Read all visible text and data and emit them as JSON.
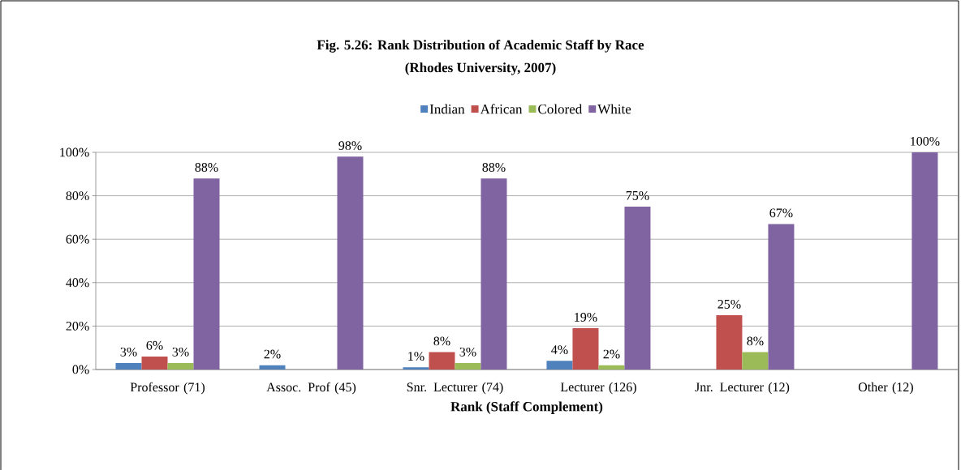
{
  "chart_data": {
    "type": "bar",
    "title": "Fig. 5.26: Rank Distribution of Academic Staff by Race",
    "subtitle": "(Rhodes University, 2007)",
    "xlabel": "Rank (Staff Complement)",
    "categories": [
      "Professor (71)",
      "Assoc. Prof (45)",
      "Snr. Lecturer (74)",
      "Lecturer (126)",
      "Jnr. Lecturer (12)",
      "Other (12)"
    ],
    "series": [
      {
        "name": "Indian",
        "color": "#4f81bd",
        "values": [
          3,
          2,
          1,
          4,
          null,
          null
        ],
        "value_labels": [
          "3%",
          "2%",
          "1%",
          "4%",
          null,
          null
        ]
      },
      {
        "name": "African",
        "color": "#c0504d",
        "values": [
          6,
          null,
          8,
          19,
          25,
          null
        ],
        "value_labels": [
          "6%",
          null,
          "8%",
          "19%",
          "25%",
          null
        ]
      },
      {
        "name": "Colored",
        "color": "#9bbb59",
        "values": [
          3,
          null,
          3,
          2,
          8,
          null
        ],
        "value_labels": [
          "3%",
          null,
          "3%",
          "2%",
          "8%",
          null
        ]
      },
      {
        "name": "White",
        "color": "#8064a2",
        "values": [
          88,
          98,
          88,
          75,
          67,
          100
        ],
        "value_labels": [
          "88%",
          "98%",
          "88%",
          "75%",
          "67%",
          "100%"
        ]
      }
    ],
    "ylim": [
      0,
      100
    ],
    "yticks": [
      {
        "value": 0,
        "label": "0%"
      },
      {
        "value": 20,
        "label": "20%"
      },
      {
        "value": 40,
        "label": "40%"
      },
      {
        "value": 60,
        "label": "60%"
      },
      {
        "value": 80,
        "label": "80%"
      },
      {
        "value": 100,
        "label": "100%"
      }
    ],
    "grid": "y",
    "legend": "top"
  }
}
